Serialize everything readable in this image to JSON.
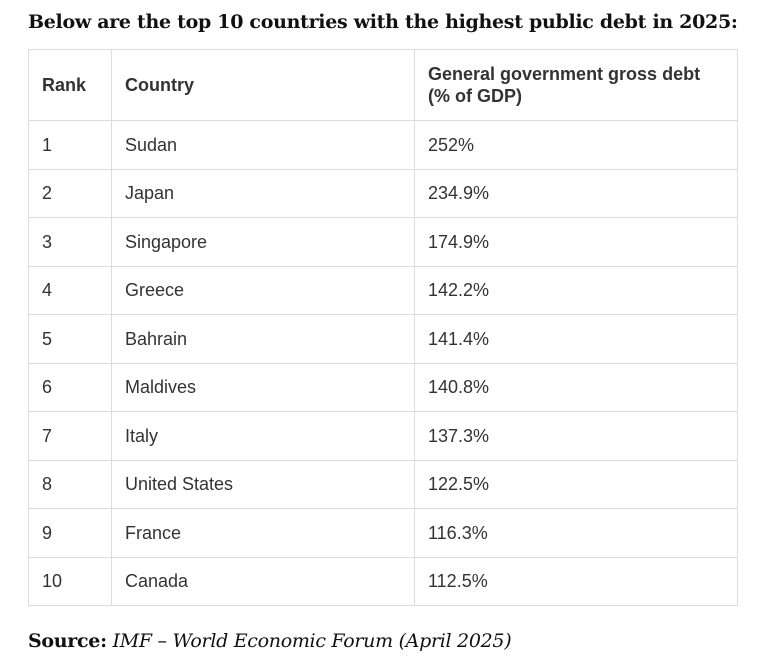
{
  "heading": "Below are the top 10 countries with the highest public debt in 2025:",
  "table": {
    "headers": [
      "Rank",
      "Country",
      "General government gross debt (% of GDP)"
    ],
    "rows": [
      {
        "rank": "1",
        "country": "Sudan",
        "debt": "252%"
      },
      {
        "rank": "2",
        "country": "Japan",
        "debt": "234.9%"
      },
      {
        "rank": "3",
        "country": "Singapore",
        "debt": "174.9%"
      },
      {
        "rank": "4",
        "country": "Greece",
        "debt": "142.2%"
      },
      {
        "rank": "5",
        "country": "Bahrain",
        "debt": "141.4%"
      },
      {
        "rank": "6",
        "country": "Maldives",
        "debt": "140.8%"
      },
      {
        "rank": "7",
        "country": "Italy",
        "debt": "137.3%"
      },
      {
        "rank": "8",
        "country": "United States",
        "debt": "122.5%"
      },
      {
        "rank": "9",
        "country": "France",
        "debt": "116.3%"
      },
      {
        "rank": "10",
        "country": "Canada",
        "debt": "112.5%"
      }
    ]
  },
  "source": {
    "label": "Source:",
    "text": "IMF – World Economic Forum (April 2025)"
  }
}
